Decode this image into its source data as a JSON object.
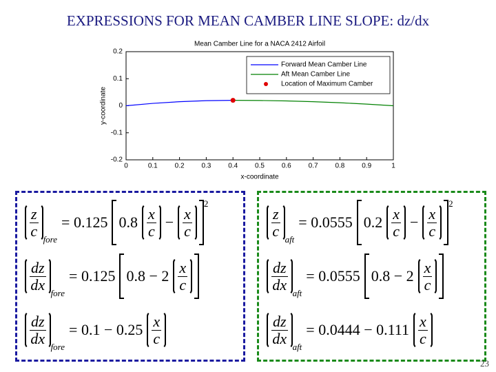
{
  "slide_title": "EXPRESSIONS FOR MEAN CAMBER LINE SLOPE: dz/dx",
  "page_number": "23",
  "chart_data": {
    "type": "line",
    "title": "Mean Camber Line for a NACA 2412 Airfoil",
    "xlabel": "x-coordinate",
    "ylabel": "y-coordinate",
    "xlim": [
      0,
      1
    ],
    "ylim": [
      -0.2,
      0.2
    ],
    "xticks": [
      0,
      0.1,
      0.2,
      0.3,
      0.4,
      0.5,
      0.6,
      0.7,
      0.8,
      0.9,
      1
    ],
    "yticks": [
      -0.2,
      -0.1,
      0,
      0.1,
      0.2
    ],
    "grid": false,
    "legend": "upper right",
    "series": [
      {
        "name": "Forward Mean Camber Line",
        "color": "#0000ff",
        "x": [
          0,
          0.1,
          0.2,
          0.3,
          0.4
        ],
        "values": [
          0,
          0.00875,
          0.015,
          0.01875,
          0.02
        ]
      },
      {
        "name": "Aft Mean Camber Line",
        "color": "#008000",
        "x": [
          0.4,
          0.5,
          0.6,
          0.7,
          0.8,
          0.9,
          1
        ],
        "values": [
          0.02,
          0.0194,
          0.0178,
          0.015,
          0.0111,
          0.0061,
          0
        ]
      },
      {
        "name": "Location of Maximum Camber",
        "color": "#e00000",
        "marker": "o",
        "x": [
          0.4
        ],
        "values": [
          0.02
        ]
      }
    ]
  },
  "equations": {
    "fore": [
      {
        "lhs_num": "z",
        "lhs_den": "c",
        "subscript": "fore",
        "rhs_lead": "= 0.125",
        "bracket_lead": "0.8",
        "frac1": [
          "x",
          "c"
        ],
        "op": "−",
        "frac2": [
          "x",
          "c"
        ],
        "exponent": "2"
      },
      {
        "lhs_num": "dz",
        "lhs_den": "dx",
        "subscript": "fore",
        "rhs_lead": "= 0.125",
        "bracket_lead": "0.8 − 2",
        "frac1": [
          "x",
          "c"
        ]
      },
      {
        "lhs_num": "dz",
        "lhs_den": "dx",
        "subscript": "fore",
        "rhs_lead": "= 0.1 − 0.25",
        "frac1": [
          "x",
          "c"
        ]
      }
    ],
    "aft": [
      {
        "lhs_num": "z",
        "lhs_den": "c",
        "subscript": "aft",
        "rhs_lead": "= 0.0555",
        "bracket_lead": "0.2",
        "frac1": [
          "x",
          "c"
        ],
        "op": "−",
        "frac2": [
          "x",
          "c"
        ],
        "exponent": "2"
      },
      {
        "lhs_num": "dz",
        "lhs_den": "dx",
        "subscript": "aft",
        "rhs_lead": "= 0.0555",
        "bracket_lead": "0.8 − 2",
        "frac1": [
          "x",
          "c"
        ]
      },
      {
        "lhs_num": "dz",
        "lhs_den": "dx",
        "subscript": "aft",
        "rhs_lead": "= 0.0444 − 0.111",
        "frac1": [
          "x",
          "c"
        ]
      }
    ]
  }
}
